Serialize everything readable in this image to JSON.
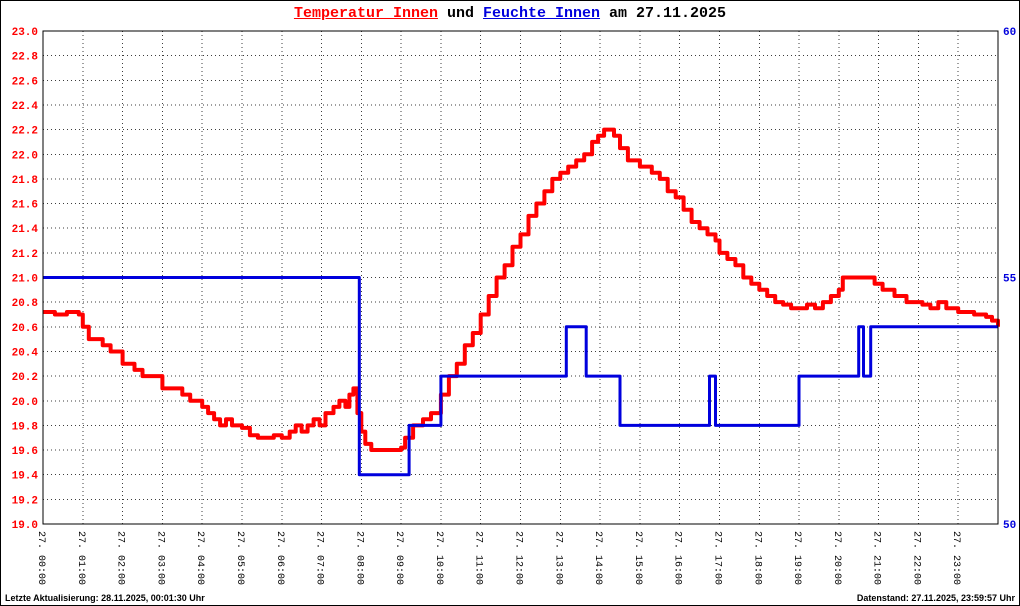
{
  "title": {
    "temperature_label": "Temperatur Innen",
    "connector": " und ",
    "humidity_label": "Feuchte Innen",
    "date_suffix": " am 27.11.2025"
  },
  "footer": {
    "last_update": "Letzte Aktualisierung: 28.11.2025, 00:01:30 Uhr",
    "data_timestamp": "Datenstand: 27.11.2025, 23:59:57 Uhr"
  },
  "colors": {
    "temperature": "#ff0000",
    "humidity": "#0000dd",
    "grid": "#3d3d3d",
    "frame": "#000000",
    "background": "#ffffff",
    "text": "#000000"
  },
  "chart_data": {
    "type": "line",
    "style": "step",
    "title": "Temperatur Innen und Feuchte Innen am 27.11.2025",
    "grid": true,
    "legend": "none",
    "x_axis": {
      "range_hours": [
        0,
        24
      ],
      "tick_interval_hours": 1,
      "tick_labels": [
        "27. 00:00",
        "27. 01:00",
        "27. 02:00",
        "27. 03:00",
        "27. 04:00",
        "27. 05:00",
        "27. 06:00",
        "27. 07:00",
        "27. 08:00",
        "27. 09:00",
        "27. 10:00",
        "27. 11:00",
        "27. 12:00",
        "27. 13:00",
        "27. 14:00",
        "27. 15:00",
        "27. 16:00",
        "27. 17:00",
        "27. 18:00",
        "27. 19:00",
        "27. 20:00",
        "27. 21:00",
        "27. 22:00",
        "27. 23:00"
      ]
    },
    "left_y_axis": {
      "series": "Temperatur Innen",
      "color": "#ff0000",
      "min": 19.0,
      "max": 23.0,
      "tick_step": 0.2,
      "tick_labels_top_to_bottom": [
        "23.0",
        "22.8",
        "22.6",
        "22.4",
        "22.2",
        "22.0",
        "21.8",
        "21.6",
        "21.4",
        "21.2",
        "21.0",
        "20.8",
        "20.6",
        "20.4",
        "20.2",
        "20.0",
        "19.8",
        "19.6",
        "19.4",
        "19.2",
        "19.0"
      ]
    },
    "right_y_axis": {
      "series": "Feuchte Innen",
      "color": "#0000dd",
      "min": 50,
      "max": 60,
      "ticks": [
        {
          "label": "60",
          "value": 60
        },
        {
          "label": "55",
          "value": 55
        },
        {
          "label": "50",
          "value": 50
        }
      ]
    },
    "series": [
      {
        "name": "Temperatur Innen",
        "axis": "left",
        "color": "#ff0000",
        "points": [
          [
            0,
            20.72
          ],
          [
            0.3,
            20.7
          ],
          [
            0.6,
            20.72
          ],
          [
            0.9,
            20.7
          ],
          [
            1,
            20.6
          ],
          [
            1.15,
            20.5
          ],
          [
            1.5,
            20.45
          ],
          [
            1.7,
            20.4
          ],
          [
            2,
            20.3
          ],
          [
            2.3,
            20.25
          ],
          [
            2.5,
            20.2
          ],
          [
            3,
            20.1
          ],
          [
            3.5,
            20.05
          ],
          [
            3.7,
            20.0
          ],
          [
            4,
            19.95
          ],
          [
            4.15,
            19.9
          ],
          [
            4.3,
            19.85
          ],
          [
            4.45,
            19.8
          ],
          [
            4.6,
            19.85
          ],
          [
            4.75,
            19.8
          ],
          [
            5,
            19.78
          ],
          [
            5.2,
            19.72
          ],
          [
            5.4,
            19.7
          ],
          [
            5.8,
            19.72
          ],
          [
            6,
            19.7
          ],
          [
            6.2,
            19.75
          ],
          [
            6.35,
            19.8
          ],
          [
            6.5,
            19.75
          ],
          [
            6.65,
            19.8
          ],
          [
            6.8,
            19.85
          ],
          [
            6.95,
            19.8
          ],
          [
            7.1,
            19.9
          ],
          [
            7.3,
            19.95
          ],
          [
            7.45,
            20.0
          ],
          [
            7.6,
            19.95
          ],
          [
            7.7,
            20.05
          ],
          [
            7.8,
            20.1
          ],
          [
            7.9,
            19.9
          ],
          [
            8,
            19.75
          ],
          [
            8.1,
            19.65
          ],
          [
            8.25,
            19.6
          ],
          [
            9,
            19.62
          ],
          [
            9.1,
            19.7
          ],
          [
            9.3,
            19.8
          ],
          [
            9.55,
            19.85
          ],
          [
            9.75,
            19.9
          ],
          [
            10,
            20.05
          ],
          [
            10.2,
            20.2
          ],
          [
            10.4,
            20.3
          ],
          [
            10.6,
            20.45
          ],
          [
            10.8,
            20.55
          ],
          [
            11,
            20.7
          ],
          [
            11.2,
            20.85
          ],
          [
            11.4,
            21.0
          ],
          [
            11.6,
            21.1
          ],
          [
            11.8,
            21.25
          ],
          [
            12,
            21.35
          ],
          [
            12.2,
            21.5
          ],
          [
            12.4,
            21.6
          ],
          [
            12.6,
            21.7
          ],
          [
            12.8,
            21.8
          ],
          [
            13,
            21.85
          ],
          [
            13.2,
            21.9
          ],
          [
            13.4,
            21.95
          ],
          [
            13.6,
            22.0
          ],
          [
            13.8,
            22.1
          ],
          [
            13.95,
            22.15
          ],
          [
            14.1,
            22.2
          ],
          [
            14.35,
            22.15
          ],
          [
            14.5,
            22.05
          ],
          [
            14.7,
            21.95
          ],
          [
            15,
            21.9
          ],
          [
            15.3,
            21.85
          ],
          [
            15.5,
            21.8
          ],
          [
            15.7,
            21.7
          ],
          [
            15.9,
            21.65
          ],
          [
            16.1,
            21.55
          ],
          [
            16.3,
            21.45
          ],
          [
            16.5,
            21.4
          ],
          [
            16.7,
            21.35
          ],
          [
            16.9,
            21.3
          ],
          [
            17,
            21.2
          ],
          [
            17.2,
            21.15
          ],
          [
            17.4,
            21.1
          ],
          [
            17.6,
            21.0
          ],
          [
            17.8,
            20.95
          ],
          [
            18,
            20.9
          ],
          [
            18.2,
            20.85
          ],
          [
            18.4,
            20.8
          ],
          [
            18.6,
            20.78
          ],
          [
            18.8,
            20.75
          ],
          [
            19.2,
            20.78
          ],
          [
            19.4,
            20.75
          ],
          [
            19.6,
            20.8
          ],
          [
            19.8,
            20.85
          ],
          [
            20,
            20.9
          ],
          [
            20.1,
            21.0
          ],
          [
            20.6,
            21.0
          ],
          [
            20.9,
            20.95
          ],
          [
            21.1,
            20.9
          ],
          [
            21.4,
            20.85
          ],
          [
            21.7,
            20.8
          ],
          [
            22.1,
            20.78
          ],
          [
            22.3,
            20.75
          ],
          [
            22.5,
            20.8
          ],
          [
            22.7,
            20.75
          ],
          [
            23,
            20.72
          ],
          [
            23.4,
            20.7
          ],
          [
            23.7,
            20.68
          ],
          [
            23.85,
            20.65
          ],
          [
            24,
            20.6
          ]
        ]
      },
      {
        "name": "Feuchte Innen",
        "axis": "right",
        "color": "#0000dd",
        "points": [
          [
            0,
            55
          ],
          [
            7.95,
            51
          ],
          [
            9.2,
            52
          ],
          [
            10,
            53
          ],
          [
            13.15,
            54
          ],
          [
            13.65,
            53
          ],
          [
            14.5,
            52
          ],
          [
            16.75,
            53
          ],
          [
            16.9,
            52
          ],
          [
            19,
            53
          ],
          [
            20.5,
            54
          ],
          [
            20.62,
            53
          ],
          [
            20.8,
            54
          ],
          [
            24,
            54
          ]
        ]
      }
    ]
  }
}
